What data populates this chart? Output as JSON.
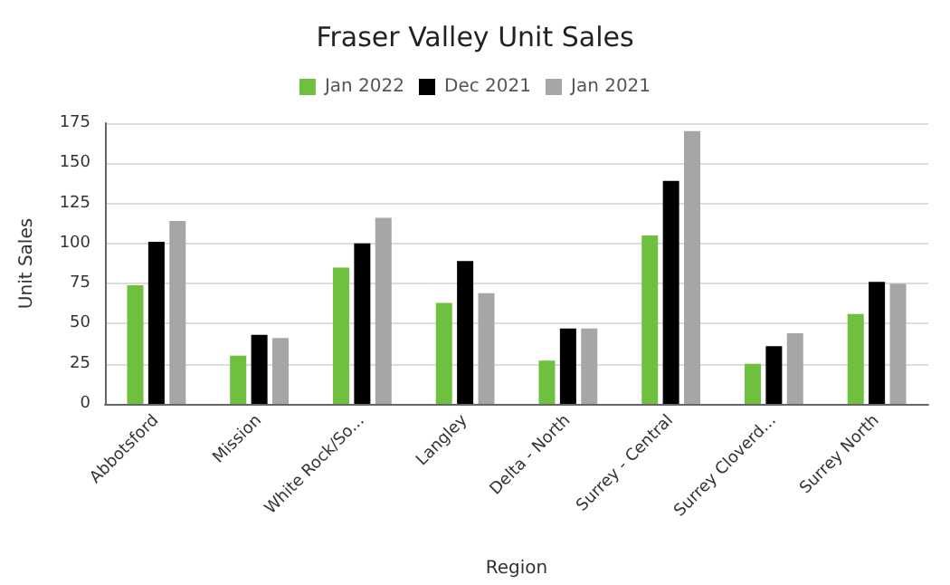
{
  "chart_data": {
    "type": "bar",
    "title": "Fraser Valley Unit Sales",
    "xlabel": "Region",
    "ylabel": "Unit Sales",
    "categories": [
      "Abbotsford",
      "Mission",
      "White Rock/So...",
      "Langley",
      "Delta - North",
      "Surrey - Central",
      "Surrey Cloverd...",
      "Surrey North"
    ],
    "series": [
      {
        "name": "Jan 2022",
        "color": "#70c040",
        "values": [
          74,
          30,
          85,
          63,
          27,
          105,
          25,
          56
        ]
      },
      {
        "name": "Dec 2021",
        "color": "#000000",
        "values": [
          101,
          43,
          100,
          89,
          47,
          139,
          36,
          76
        ]
      },
      {
        "name": "Jan 2021",
        "color": "#a6a6a6",
        "values": [
          114,
          41,
          116,
          69,
          47,
          170,
          44,
          75
        ]
      }
    ],
    "ylim": [
      0,
      175
    ],
    "yticks": [
      0,
      25,
      50,
      75,
      100,
      125,
      150,
      175
    ],
    "grid": "y",
    "legend": "top"
  }
}
